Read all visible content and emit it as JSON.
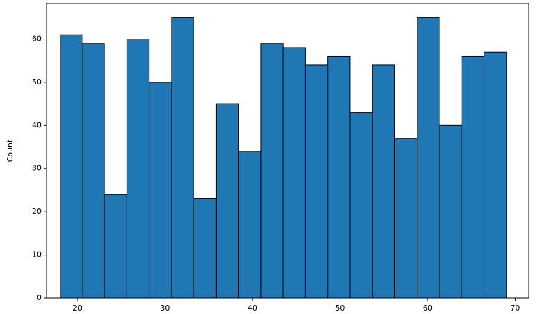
{
  "chart_data": {
    "type": "histogram",
    "ylabel": "Count",
    "bins": [
      18,
      20.55,
      23.1,
      25.65,
      28.2,
      30.75,
      33.3,
      35.85,
      38.4,
      40.95,
      43.5,
      46.05,
      48.6,
      51.15,
      53.7,
      56.25,
      58.8,
      61.35,
      63.9,
      66.45,
      69
    ],
    "counts": [
      61,
      59,
      24,
      60,
      50,
      65,
      23,
      45,
      34,
      59,
      58,
      54,
      56,
      43,
      54,
      37,
      65,
      40,
      56,
      57
    ],
    "color": "#1f77b4",
    "edgecolor": "#000000",
    "xlim": [
      16.45,
      71.55
    ],
    "xticks": [
      20,
      30,
      40,
      50,
      60,
      70
    ],
    "ylim": [
      0,
      68.25
    ],
    "yticks": [
      0,
      10,
      20,
      30,
      40,
      50,
      60
    ]
  }
}
